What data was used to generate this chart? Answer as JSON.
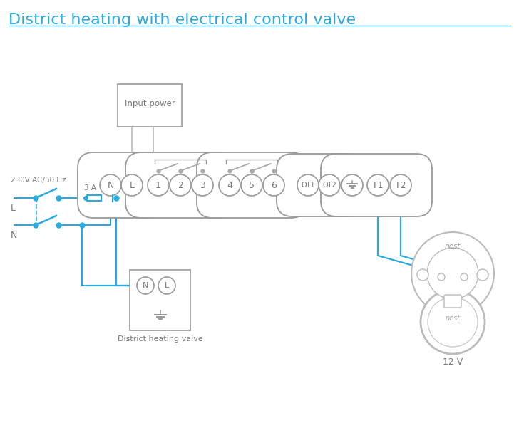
{
  "title": "District heating with electrical control valve",
  "title_color": "#29abe2",
  "title_fontsize": 16,
  "bg_color": "#ffffff",
  "wire_color": "#29abe2",
  "component_color": "#999999",
  "text_color": "#777777",
  "nest_label": "nest",
  "volt_label": "12 V",
  "district_label": "District heating valve",
  "label_230v": "230V AC/50 Hz",
  "label_L": "L",
  "label_N": "N",
  "label_3A": "3 A",
  "input_power_label": "Input power",
  "strip1_labels": [
    "N",
    "L",
    "1",
    "2",
    "3",
    "4",
    "5",
    "6"
  ],
  "strip2_labels": [
    "OT1",
    "OT2"
  ],
  "strip3_labels": [
    "T1",
    "T2"
  ]
}
